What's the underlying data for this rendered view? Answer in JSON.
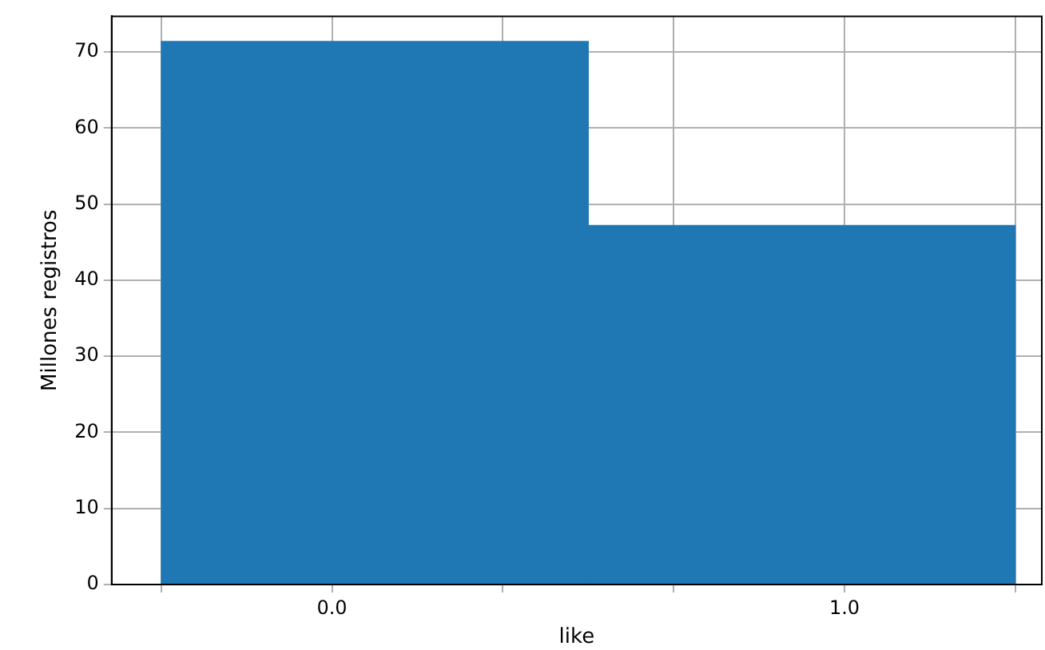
{
  "chart_data": {
    "type": "histogram",
    "xlabel": "like",
    "ylabel": "Millones registros",
    "bins": [
      -0.333,
      0.5,
      1.333
    ],
    "values": [
      71.4,
      47.2
    ],
    "color": "#1f77b4",
    "xlim": [
      -0.43,
      1.385
    ],
    "xticks": [
      {
        "value": -0.333,
        "label": null
      },
      {
        "value": 0,
        "label": "0.0"
      },
      {
        "value": 0.333,
        "label": null
      },
      {
        "value": 0.667,
        "label": null
      },
      {
        "value": 1,
        "label": "1.0"
      },
      {
        "value": 1.333,
        "label": null
      }
    ],
    "ylim": [
      0,
      74.7
    ],
    "yticks": [
      0,
      10,
      20,
      30,
      40,
      50,
      60,
      70
    ],
    "grid": true
  }
}
